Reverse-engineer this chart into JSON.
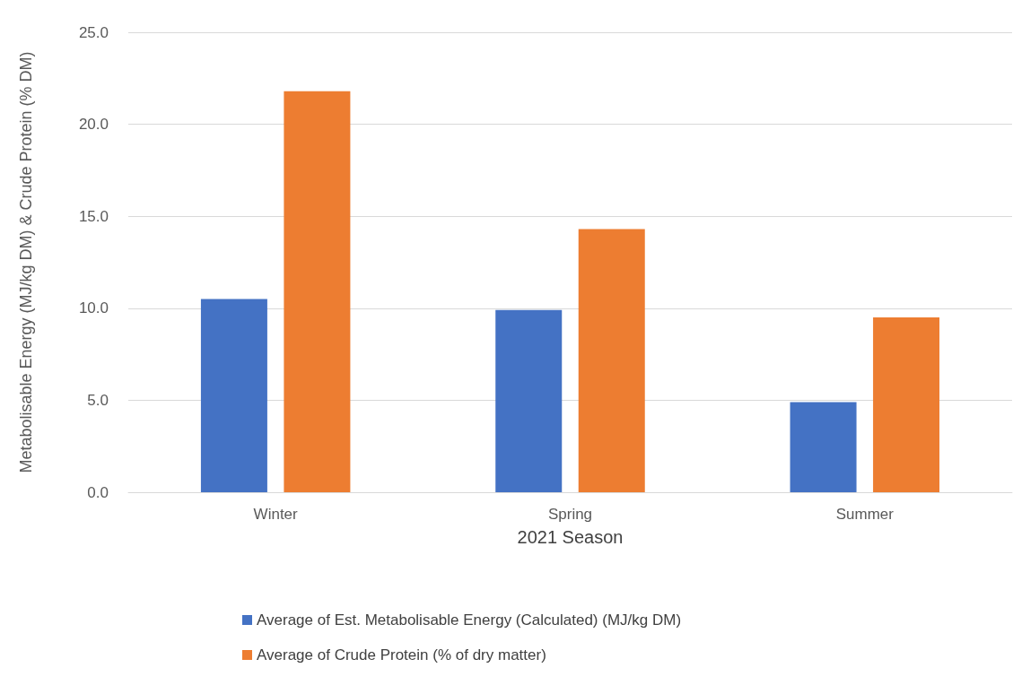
{
  "chart_data": {
    "type": "bar",
    "xlabel": "2021 Season",
    "ylabel": "Metabolisable Energy (MJ/kg DM) & Crude Protein (% DM)",
    "categories": [
      "Winter",
      "Spring",
      "Summer"
    ],
    "series": [
      {
        "name": "Average of Est. Metabolisable Energy (Calculated) (MJ/kg DM)",
        "color": "#4472c4",
        "values": [
          10.5,
          9.9,
          4.9
        ]
      },
      {
        "name": "Average of Crude Protein (% of dry matter)",
        "color": "#ed7d31",
        "values": [
          21.8,
          14.3,
          9.5
        ]
      }
    ],
    "ylim": [
      0,
      25
    ],
    "yticks": [
      {
        "value": 0,
        "label": "0.0"
      },
      {
        "value": 5,
        "label": "5.0"
      },
      {
        "value": 10,
        "label": "10.0"
      },
      {
        "value": 15,
        "label": "15.0"
      },
      {
        "value": 20,
        "label": "20.0"
      },
      {
        "value": 25,
        "label": "25.0"
      }
    ],
    "grid": "y",
    "legend": "bottom"
  }
}
